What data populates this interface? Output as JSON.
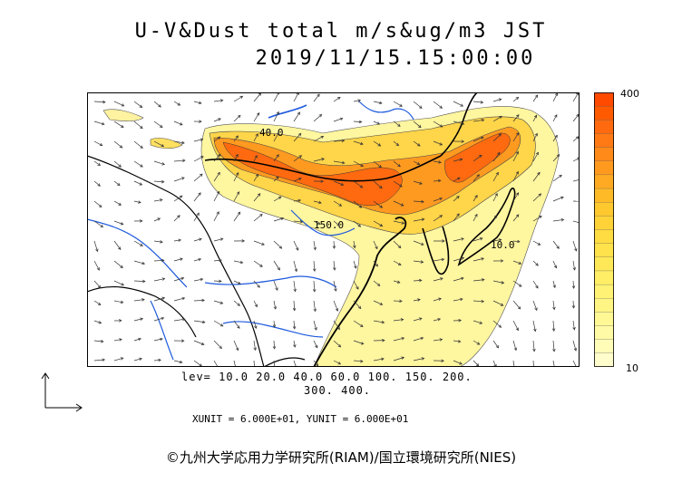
{
  "header": {
    "title": "U-V&Dust total m/s&ug/m3 JST",
    "timestamp": "2019/11/15.15:00:00"
  },
  "colorbar": {
    "max_label": "400",
    "min_label": "10",
    "colors": [
      "#ff4a00",
      "#ff5a00",
      "#ff6a10",
      "#ff7a14",
      "#ff8a1a",
      "#ff9a1e",
      "#ffaa22",
      "#ffba28",
      "#ffc82e",
      "#ffd238",
      "#ffdc42",
      "#ffe24c",
      "#ffe858",
      "#ffee66",
      "#fff274",
      "#fff584",
      "#fff894",
      "#fffaa6",
      "#fffcb8",
      "#fffdcc"
    ]
  },
  "legend": {
    "lev_line1": "lev= 10.0 20.0 40.0 60.0 100. 150. 200.",
    "lev_line2": "300. 400.",
    "units": "XUNIT = 6.000E+01, YUNIT = 6.000E+01"
  },
  "map": {
    "contour_labels": [
      "40.0",
      "150.0",
      "10.0"
    ],
    "dust_colors": {
      "low": "#fff6a0",
      "mid": "#ffd54a",
      "high": "#ff9a20",
      "peak": "#ff6a10"
    },
    "coast_color": "#000000",
    "river_color": "#1e5adc"
  },
  "footer": {
    "credit": "©九州大学応用力学研究所(RIAM)/国立環境研究所(NIES)"
  }
}
